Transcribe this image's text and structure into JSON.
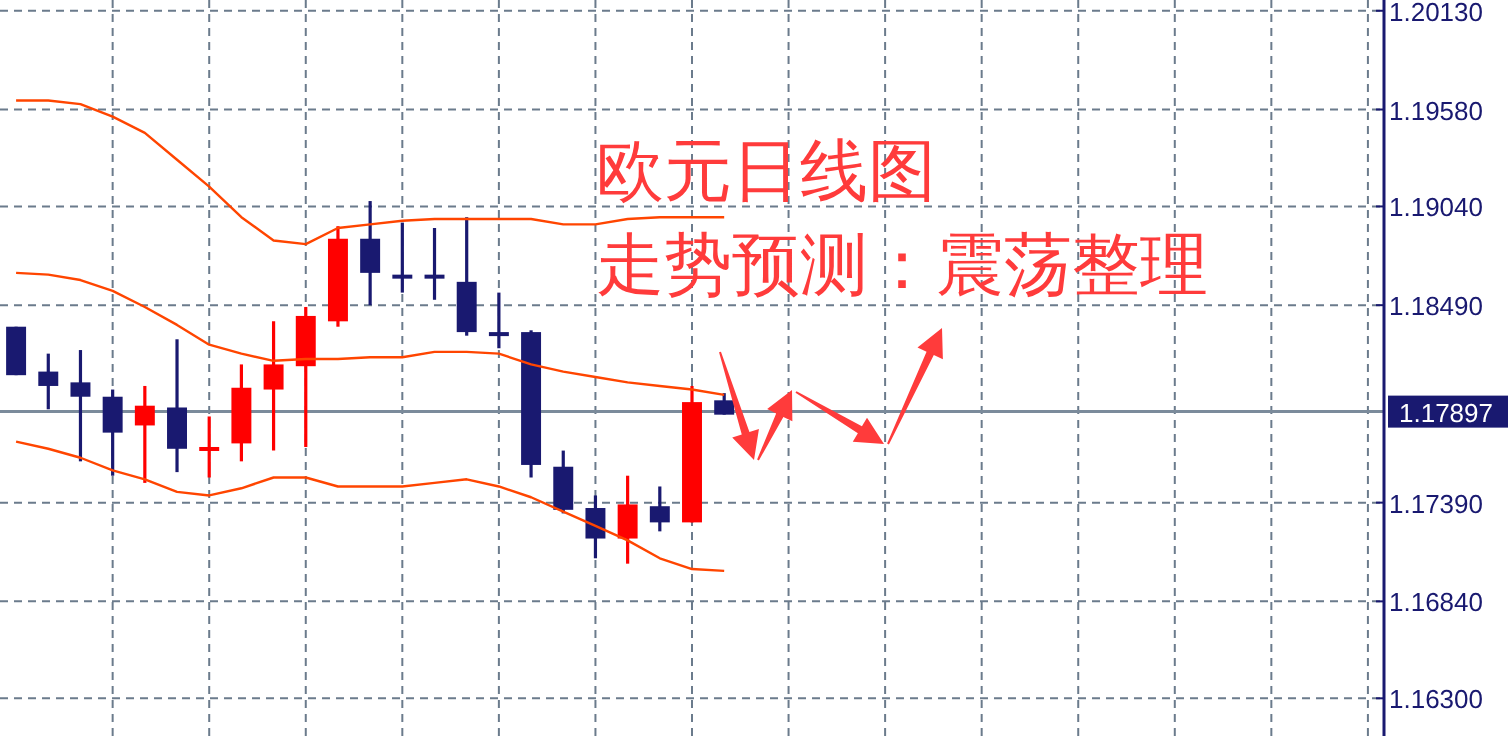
{
  "chart_data": {
    "type": "candlestick",
    "categories": [
      null,
      null,
      null,
      null,
      null,
      null,
      null,
      null,
      null,
      null,
      null,
      null,
      null,
      null,
      null,
      null,
      null,
      null,
      null,
      null,
      null,
      null,
      null,
      null,
      null,
      null,
      null,
      null,
      null,
      null,
      null,
      null,
      null,
      null,
      null,
      null,
      null,
      null,
      null,
      null,
      null,
      null,
      null
    ],
    "ohlc": [
      [
        1.1837,
        1.1837,
        1.181,
        1.181
      ],
      [
        1.1812,
        1.1822,
        1.1791,
        1.1804
      ],
      [
        1.1806,
        1.1824,
        1.1762,
        1.1798
      ],
      [
        1.1798,
        1.1802,
        1.1754,
        1.1778
      ],
      [
        1.1782,
        1.1804,
        1.175,
        1.1793
      ],
      [
        1.1792,
        1.183,
        1.1756,
        1.1769
      ],
      [
        1.1769,
        1.1787,
        1.1753,
        1.177
      ],
      [
        1.1772,
        1.1816,
        1.1762,
        1.1803
      ],
      [
        1.1802,
        1.184,
        1.1768,
        1.1816
      ],
      [
        1.1815,
        1.1848,
        1.177,
        1.1843
      ],
      [
        1.184,
        1.1893,
        1.1837,
        1.1886
      ],
      [
        1.1886,
        1.1907,
        1.1849,
        1.1867
      ],
      [
        1.1866,
        1.1895,
        1.1856,
        1.1865
      ],
      [
        1.1866,
        1.1892,
        1.1852,
        1.1865
      ],
      [
        1.1862,
        1.1898,
        1.1832,
        1.1834
      ],
      [
        1.1834,
        1.1856,
        1.1825,
        1.1832
      ],
      [
        1.1834,
        1.1835,
        1.1753,
        1.176
      ],
      [
        1.1759,
        1.1768,
        1.1733,
        1.1735
      ],
      [
        1.1736,
        1.1743,
        1.1708,
        1.1719
      ],
      [
        1.1719,
        1.1754,
        1.1705,
        1.1738
      ],
      [
        1.1737,
        1.1748,
        1.1723,
        1.1728
      ],
      [
        1.1728,
        1.1804,
        1.1728,
        1.1795
      ],
      [
        1.1796,
        1.18,
        1.1788,
        1.1788
      ],
      null,
      null,
      null,
      null,
      null,
      null,
      null,
      null,
      null,
      null,
      null,
      null,
      null,
      null,
      null,
      null,
      null,
      null,
      null,
      null
    ],
    "colors": [
      "#191970",
      "#191970",
      "#191970",
      "#191970",
      "#ff0000",
      "#191970",
      "#ff0000",
      "#ff0000",
      "#ff0000",
      "#ff0000",
      "#ff0000",
      "#191970",
      "#191970",
      "#191970",
      "#191970",
      "#191970",
      "#191970",
      "#191970",
      "#191970",
      "#ff0000",
      "#191970",
      "#ff0000",
      "#191970",
      null,
      null,
      null,
      null,
      null,
      null,
      null,
      null,
      null,
      null,
      null,
      null,
      null,
      null,
      null,
      null,
      null,
      null,
      null,
      null
    ],
    "series": [
      {
        "type": "line",
        "color": "#ff4500",
        "values": [
          1.1963,
          1.1963,
          1.1961,
          1.1954,
          1.1945,
          1.193,
          1.1915,
          1.1898,
          1.1885,
          1.1883,
          1.1892,
          1.1894,
          1.1896,
          1.1897,
          1.1897,
          1.1897,
          1.1897,
          1.1894,
          1.1894,
          1.1897,
          1.1898,
          1.1898,
          1.1898,
          null,
          null,
          null,
          null,
          null,
          null,
          null,
          null,
          null,
          null,
          null,
          null,
          null,
          null,
          null,
          null,
          null,
          null,
          null,
          null
        ]
      },
      {
        "type": "line",
        "color": "#ff4500",
        "values": [
          1.1867,
          1.1866,
          1.1863,
          1.1857,
          1.1848,
          1.1838,
          1.1827,
          1.1822,
          1.1818,
          1.1819,
          1.1819,
          1.182,
          1.182,
          1.1823,
          1.1823,
          1.1822,
          1.1816,
          1.1812,
          1.1809,
          1.1806,
          1.1804,
          1.1802,
          1.1799,
          null,
          null,
          null,
          null,
          null,
          null,
          null,
          null,
          null,
          null,
          null,
          null,
          null,
          null,
          null,
          null,
          null,
          null,
          null,
          null
        ]
      },
      {
        "type": "line",
        "color": "#ff4500",
        "values": [
          1.1773,
          1.1769,
          1.1764,
          1.1757,
          1.1752,
          1.1745,
          1.1743,
          1.1747,
          1.1753,
          1.1753,
          1.1748,
          1.1748,
          1.1748,
          1.175,
          1.1752,
          1.1748,
          1.1742,
          1.1734,
          1.1726,
          1.1718,
          1.1708,
          1.1702,
          1.1701,
          null,
          null,
          null,
          null,
          null,
          null,
          null,
          null,
          null,
          null,
          null,
          null,
          null,
          null,
          null,
          null,
          null,
          null,
          null,
          null
        ]
      }
    ],
    "ylim": [
      1.1609,
      1.2019
    ],
    "yticks": [
      {
        "value": 1.2013,
        "label": "1.20130"
      },
      {
        "value": 1.1958,
        "label": "1.19580"
      },
      {
        "value": 1.1904,
        "label": "1.19040"
      },
      {
        "value": 1.1849,
        "label": "1.18490"
      },
      {
        "value": 1.1739,
        "label": "1.17390"
      },
      {
        "value": 1.1684,
        "label": "1.16840"
      },
      {
        "value": 1.163,
        "label": "1.16300"
      }
    ],
    "ref_lines": [
      {
        "axis": "y",
        "value": 1.17897,
        "label": "1.17897",
        "color": "#7b8b9b"
      }
    ],
    "annotations": [
      "欧元日线图",
      "走势预测：震荡整理"
    ],
    "grid": true,
    "marker": "none"
  }
}
